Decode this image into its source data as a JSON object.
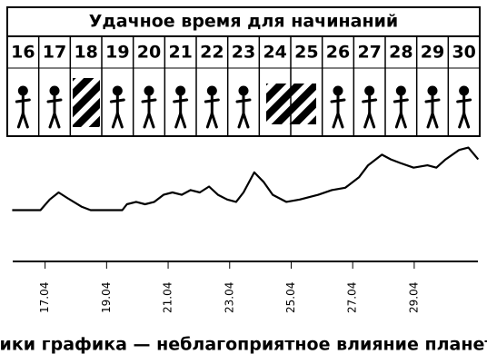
{
  "header": {
    "title": "Удачное время для начинаний"
  },
  "days": [
    16,
    17,
    18,
    19,
    20,
    21,
    22,
    23,
    24,
    25,
    26,
    27,
    28,
    29,
    30
  ],
  "chart_data": {
    "type": "line",
    "x": [
      15.93,
      16.85,
      17.15,
      17.44,
      17.74,
      18.18,
      18.48,
      19.51,
      19.66,
      19.96,
      20.25,
      20.55,
      20.85,
      21.14,
      21.44,
      21.73,
      22.03,
      22.33,
      22.62,
      22.92,
      23.21,
      23.45,
      23.8,
      24.1,
      24.4,
      24.84,
      25.28,
      25.88,
      26.32,
      26.76,
      27.21,
      27.5,
      27.95,
      28.24,
      28.54,
      28.98,
      29.43,
      29.72,
      30.02,
      30.46,
      30.76,
      31.08
    ],
    "series": [
      {
        "color": "#000000",
        "values": [
          45,
          45,
          54,
          60,
          55,
          48,
          45,
          45,
          50,
          52,
          50,
          52,
          58,
          60,
          58,
          62,
          60,
          65,
          58,
          54,
          52,
          60,
          77,
          69,
          58,
          52,
          54,
          58,
          62,
          64,
          73,
          83,
          92,
          88,
          85,
          81,
          83,
          81,
          88,
          96,
          98,
          88
        ]
      }
    ],
    "xlim": [
      15.8,
      31.1
    ],
    "ylim": [
      0,
      100
    ],
    "xticks": [
      {
        "value": 17,
        "label": "17.04"
      },
      {
        "value": 19,
        "label": "19.04"
      },
      {
        "value": 21,
        "label": "21.04"
      },
      {
        "value": 23,
        "label": "23.04"
      },
      {
        "value": 25,
        "label": "25.04"
      },
      {
        "value": 27,
        "label": "27.04"
      },
      {
        "value": 29,
        "label": "29.04"
      }
    ]
  },
  "caption": "Пики графика — неблагоприятное влияние планет"
}
